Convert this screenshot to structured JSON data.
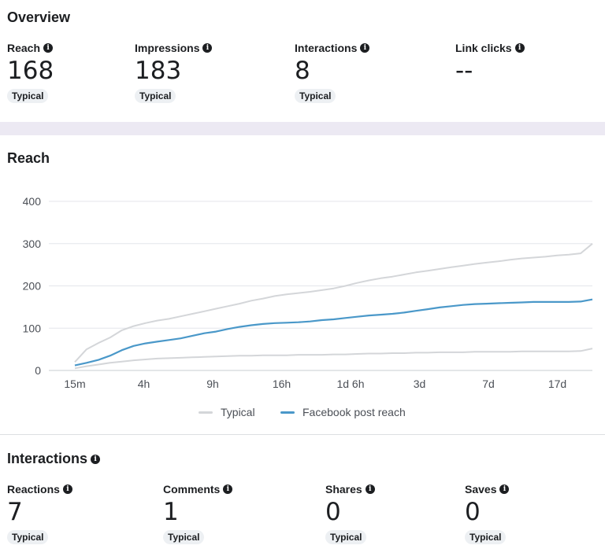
{
  "overview": {
    "title": "Overview",
    "metrics": [
      {
        "label": "Reach",
        "value": "168",
        "badge": "Typical"
      },
      {
        "label": "Impressions",
        "value": "183",
        "badge": "Typical"
      },
      {
        "label": "Interactions",
        "value": "8",
        "badge": "Typical"
      },
      {
        "label": "Link clicks",
        "value": "--",
        "badge": ""
      }
    ]
  },
  "reach_section": {
    "title": "Reach"
  },
  "chart_data": {
    "type": "line",
    "x_ticks": [
      "15m",
      "4h",
      "9h",
      "16h",
      "1d 6h",
      "3d",
      "7d",
      "17d"
    ],
    "y_ticks": [
      0,
      100,
      200,
      300,
      400
    ],
    "ylim": [
      0,
      400
    ],
    "grid": true,
    "legend_position": "bottom-center",
    "series": [
      {
        "name": "Typical",
        "color": "#d4d6d9",
        "role": "band-upper",
        "values": [
          20,
          50,
          65,
          78,
          95,
          105,
          112,
          118,
          122,
          128,
          134,
          140,
          146,
          152,
          158,
          165,
          170,
          176,
          180,
          183,
          186,
          190,
          194,
          200,
          207,
          213,
          218,
          222,
          227,
          232,
          236,
          240,
          244,
          248,
          252,
          255,
          258,
          262,
          265,
          267,
          269,
          272,
          274,
          277,
          300
        ]
      },
      {
        "name": "Typical",
        "color": "#d4d6d9",
        "role": "band-lower",
        "values": [
          5,
          10,
          14,
          18,
          21,
          24,
          26,
          28,
          29,
          30,
          31,
          32,
          33,
          34,
          35,
          35,
          36,
          36,
          36,
          37,
          37,
          37,
          38,
          38,
          39,
          40,
          40,
          41,
          41,
          42,
          42,
          43,
          43,
          43,
          44,
          44,
          44,
          44,
          45,
          45,
          45,
          45,
          45,
          46,
          52
        ]
      },
      {
        "name": "Facebook post reach",
        "color": "#4a98c9",
        "role": "main",
        "values": [
          12,
          18,
          25,
          35,
          48,
          58,
          64,
          68,
          72,
          76,
          82,
          88,
          92,
          98,
          103,
          107,
          110,
          112,
          113,
          114,
          116,
          119,
          121,
          124,
          127,
          130,
          132,
          134,
          137,
          141,
          145,
          149,
          152,
          155,
          157,
          158,
          159,
          160,
          161,
          162,
          162,
          162,
          162,
          163,
          168
        ]
      }
    ]
  },
  "legend": {
    "typical_label": "Typical",
    "main_label": "Facebook post reach"
  },
  "interactions": {
    "title": "Interactions",
    "metrics": [
      {
        "label": "Reactions",
        "value": "7",
        "badge": "Typical"
      },
      {
        "label": "Comments",
        "value": "1",
        "badge": "Typical"
      },
      {
        "label": "Shares",
        "value": "0",
        "badge": "Typical"
      },
      {
        "label": "Saves",
        "value": "0",
        "badge": "Typical"
      }
    ]
  },
  "icons": {
    "info": "info-icon"
  }
}
